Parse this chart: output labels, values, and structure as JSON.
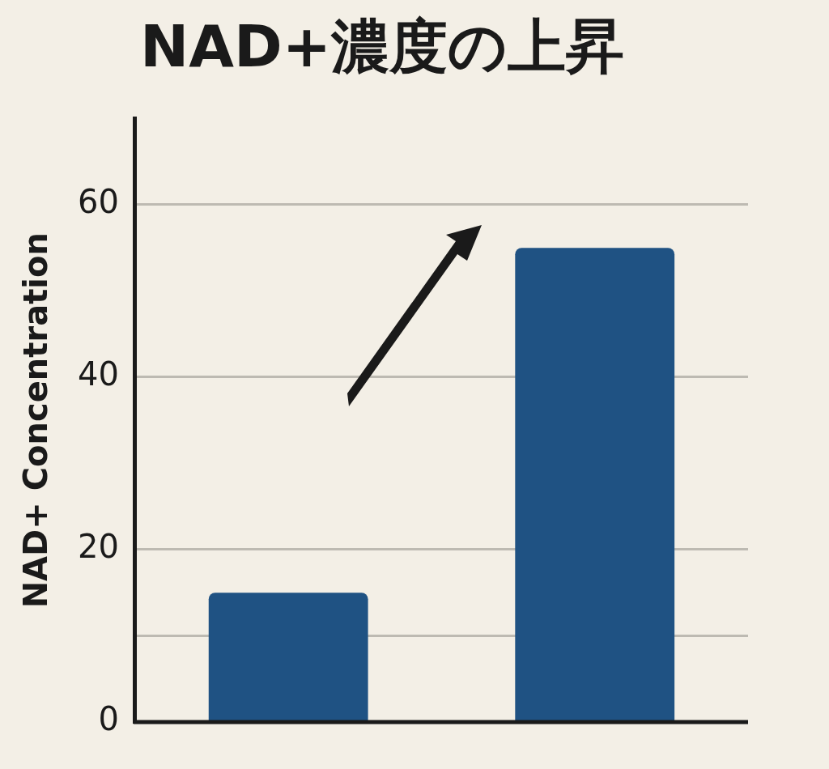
{
  "chart_data": {
    "type": "bar",
    "title": "NAD+濃度の上昇",
    "ylabel": "NAD+ Concentration",
    "categories": [
      null,
      null
    ],
    "values": [
      15,
      55
    ],
    "color": "#1f5283",
    "ylim": [
      0,
      70
    ],
    "yticks": [
      0,
      {
        "value": 10,
        "label": null
      },
      20,
      40,
      60
    ],
    "grid": "y",
    "legend": false
  }
}
